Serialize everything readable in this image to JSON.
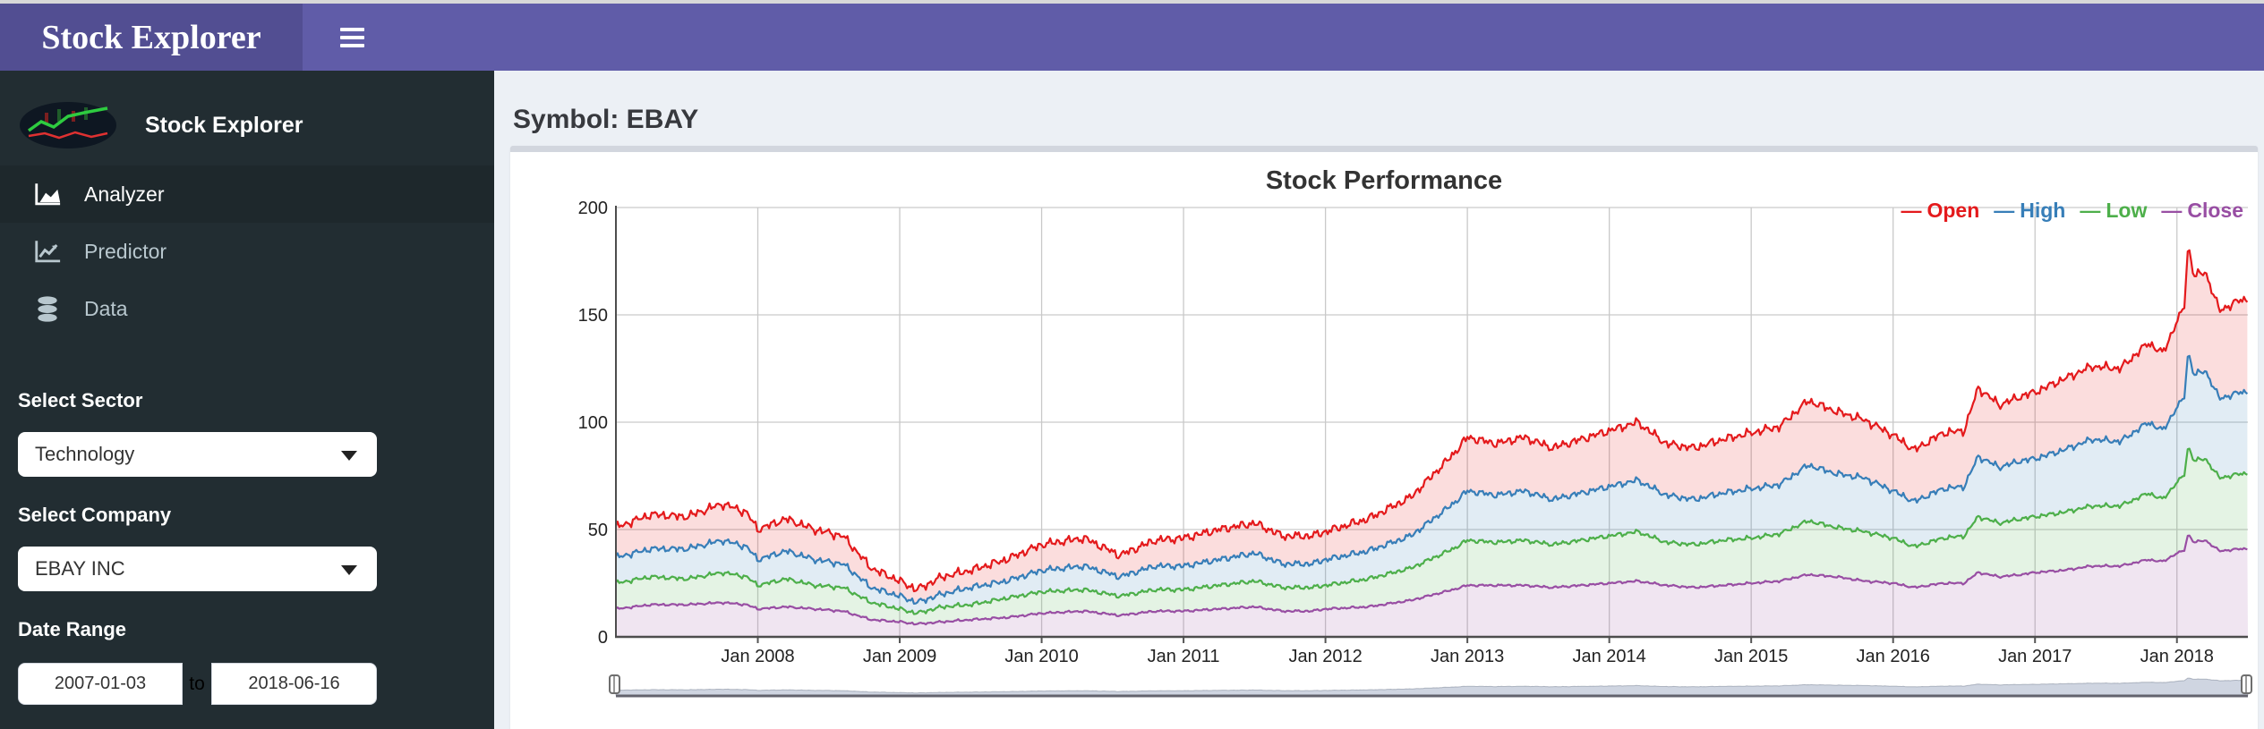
{
  "header": {
    "title": "Stock Explorer"
  },
  "sidebar": {
    "brand": "Stock Explorer",
    "menu": [
      {
        "label": "Analyzer",
        "icon": "area-chart-icon",
        "active": true
      },
      {
        "label": "Predictor",
        "icon": "line-chart-icon",
        "active": false
      },
      {
        "label": "Data",
        "icon": "database-icon",
        "active": false
      }
    ],
    "sector": {
      "label": "Select Sector",
      "value": "Technology"
    },
    "company": {
      "label": "Select Company",
      "value": "EBAY INC"
    },
    "date_range": {
      "label": "Date Range",
      "start": "2007-01-03",
      "separator": "to",
      "end": "2018-06-16"
    }
  },
  "main": {
    "symbol_heading": "Symbol: EBAY"
  },
  "ui_colors": {
    "logo_bg": "#524e92",
    "navbar": "#605ca8",
    "sidebar_bg": "#222d32",
    "sidebar_active_bg": "#1e282c",
    "content_bg": "#ecf0f5",
    "box_top_border": "#d2d6de"
  },
  "chart_data": {
    "type": "line",
    "title": "Stock Performance",
    "legend_position": "top-right",
    "grid": true,
    "style": "stacked-filled-lines",
    "x_axis": {
      "tick_labels": [
        "Jan 2008",
        "Jan 2009",
        "Jan 2010",
        "Jan 2011",
        "Jan 2012",
        "Jan 2013",
        "Jan 2014",
        "Jan 2015",
        "Jan 2016",
        "Jan 2017",
        "Jan 2018"
      ],
      "tick_years": [
        2008,
        2009,
        2010,
        2011,
        2012,
        2013,
        2014,
        2015,
        2016,
        2017,
        2018
      ],
      "range_years": [
        2007.0,
        2018.5
      ]
    },
    "y_axis": {
      "ticks": [
        0,
        50,
        100,
        150,
        200
      ],
      "range": [
        0,
        200
      ]
    },
    "x_years": [
      2007.0,
      2007.25,
      2007.5,
      2007.75,
      2007.92,
      2008.0,
      2008.2,
      2008.4,
      2008.6,
      2008.8,
      2009.0,
      2009.12,
      2009.3,
      2009.5,
      2009.75,
      2010.0,
      2010.3,
      2010.55,
      2010.8,
      2011.0,
      2011.25,
      2011.5,
      2011.7,
      2011.9,
      2012.0,
      2012.3,
      2012.6,
      2012.9,
      2013.0,
      2013.2,
      2013.4,
      2013.6,
      2013.8,
      2014.0,
      2014.2,
      2014.4,
      2014.6,
      2014.8,
      2015.0,
      2015.2,
      2015.4,
      2015.6,
      2015.8,
      2016.0,
      2016.15,
      2016.35,
      2016.5,
      2016.6,
      2016.75,
      2016.9,
      2017.0,
      2017.2,
      2017.4,
      2017.6,
      2017.8,
      2017.9,
      2018.0,
      2018.05,
      2018.08,
      2018.12,
      2018.2,
      2018.3,
      2018.45
    ],
    "series": [
      {
        "name": "Open",
        "color": "#e41a1c",
        "fill_rgba": "rgba(228,26,28,0.15)",
        "values": [
          51,
          57,
          56,
          62,
          58,
          50,
          55,
          50,
          47,
          32,
          26,
          22,
          28,
          31,
          36,
          43,
          46,
          38,
          45,
          46,
          50,
          53,
          47,
          47,
          49,
          55,
          65,
          85,
          93,
          90,
          93,
          88,
          92,
          96,
          100,
          90,
          88,
          92,
          95,
          98,
          110,
          105,
          101,
          94,
          87,
          95,
          96,
          116,
          108,
          112,
          114,
          120,
          126,
          125,
          137,
          132,
          147,
          153,
          183,
          168,
          170,
          152,
          157
        ]
      },
      {
        "name": "High",
        "color": "#377eb8",
        "fill_rgba": "rgba(55,126,184,0.15)",
        "values": [
          37,
          41,
          41,
          45,
          42,
          36,
          40,
          36,
          34,
          23,
          19,
          16,
          20,
          23,
          26,
          31,
          33,
          28,
          33,
          33,
          36,
          39,
          34,
          34,
          36,
          40,
          47,
          62,
          68,
          66,
          68,
          64,
          67,
          70,
          73,
          66,
          64,
          67,
          69,
          71,
          80,
          76,
          74,
          68,
          63,
          69,
          70,
          84,
          79,
          82,
          83,
          87,
          92,
          91,
          100,
          96,
          107,
          111,
          133,
          122,
          124,
          111,
          114
        ]
      },
      {
        "name": "Low",
        "color": "#4daf4a",
        "fill_rgba": "rgba(77,175,74,0.15)",
        "values": [
          25,
          28,
          27,
          30,
          28,
          24,
          27,
          24,
          23,
          16,
          13,
          11,
          14,
          15,
          18,
          21,
          22,
          19,
          22,
          22,
          24,
          26,
          23,
          23,
          24,
          27,
          32,
          41,
          45,
          44,
          45,
          43,
          45,
          47,
          49,
          44,
          43,
          45,
          46,
          48,
          54,
          51,
          49,
          46,
          42,
          46,
          47,
          56,
          53,
          55,
          56,
          58,
          61,
          61,
          67,
          64,
          72,
          75,
          89,
          82,
          83,
          74,
          76
        ]
      },
      {
        "name": "Close",
        "color": "#984ea3",
        "fill_rgba": "rgba(152,78,163,0.15)",
        "values": [
          13,
          15,
          15,
          16,
          15,
          13,
          14,
          13,
          12,
          8,
          7,
          6,
          7,
          8,
          9,
          11,
          12,
          10,
          12,
          12,
          13,
          14,
          12,
          12,
          13,
          14,
          17,
          22,
          24,
          24,
          24,
          23,
          24,
          25,
          26,
          24,
          23,
          24,
          25,
          26,
          29,
          28,
          26,
          25,
          23,
          25,
          25,
          30,
          28,
          29,
          30,
          31,
          33,
          33,
          36,
          35,
          39,
          40,
          48,
          44,
          45,
          40,
          41
        ]
      }
    ],
    "range_selector": {
      "present": true,
      "handles": 2
    }
  }
}
